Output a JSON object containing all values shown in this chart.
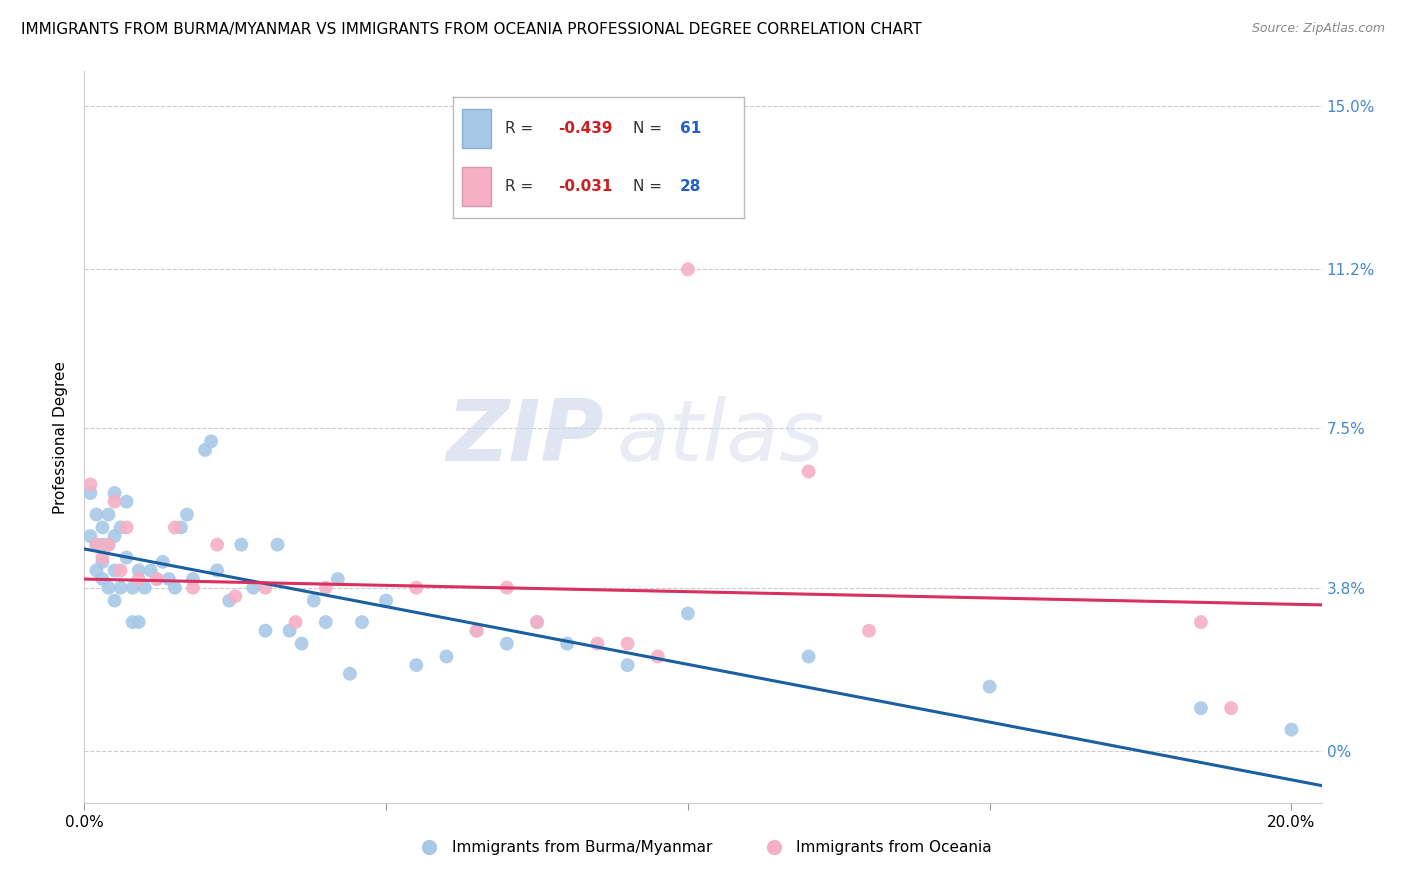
{
  "title": "IMMIGRANTS FROM BURMA/MYANMAR VS IMMIGRANTS FROM OCEANIA PROFESSIONAL DEGREE CORRELATION CHART",
  "source": "Source: ZipAtlas.com",
  "ylabel": "Professional Degree",
  "xlim": [
    0.0,
    0.205
  ],
  "ylim": [
    -0.012,
    0.158
  ],
  "ytick_vals": [
    0.0,
    0.038,
    0.075,
    0.112,
    0.15
  ],
  "ytick_labels": [
    "0%",
    "3.8%",
    "7.5%",
    "11.2%",
    "15.0%"
  ],
  "xtick_vals": [
    0.0,
    0.05,
    0.1,
    0.15,
    0.2
  ],
  "xtick_labels": [
    "0.0%",
    "",
    "",
    "",
    "20.0%"
  ],
  "legend_r1": "-0.439",
  "legend_n1": "61",
  "legend_r2": "-0.031",
  "legend_n2": "28",
  "color_blue": "#a8c8e8",
  "color_pink": "#f5b0c5",
  "color_line_blue": "#1a5fa0",
  "color_line_pink": "#d83060",
  "color_r_text": "#cc2020",
  "color_n_text": "#2060cc",
  "watermark_zip": "ZIP",
  "watermark_atlas": "atlas",
  "blue_x": [
    0.001,
    0.001,
    0.002,
    0.002,
    0.002,
    0.003,
    0.003,
    0.003,
    0.003,
    0.004,
    0.004,
    0.004,
    0.005,
    0.005,
    0.005,
    0.005,
    0.006,
    0.006,
    0.007,
    0.007,
    0.008,
    0.008,
    0.009,
    0.009,
    0.01,
    0.011,
    0.012,
    0.013,
    0.014,
    0.015,
    0.016,
    0.017,
    0.018,
    0.02,
    0.021,
    0.022,
    0.024,
    0.026,
    0.028,
    0.03,
    0.032,
    0.034,
    0.036,
    0.038,
    0.04,
    0.042,
    0.044,
    0.046,
    0.05,
    0.055,
    0.06,
    0.065,
    0.07,
    0.075,
    0.08,
    0.09,
    0.1,
    0.12,
    0.15,
    0.185,
    0.2
  ],
  "blue_y": [
    0.06,
    0.05,
    0.055,
    0.048,
    0.042,
    0.052,
    0.048,
    0.044,
    0.04,
    0.055,
    0.048,
    0.038,
    0.06,
    0.05,
    0.042,
    0.035,
    0.052,
    0.038,
    0.058,
    0.045,
    0.038,
    0.03,
    0.042,
    0.03,
    0.038,
    0.042,
    0.04,
    0.044,
    0.04,
    0.038,
    0.052,
    0.055,
    0.04,
    0.07,
    0.072,
    0.042,
    0.035,
    0.048,
    0.038,
    0.028,
    0.048,
    0.028,
    0.025,
    0.035,
    0.03,
    0.04,
    0.018,
    0.03,
    0.035,
    0.02,
    0.022,
    0.028,
    0.025,
    0.03,
    0.025,
    0.02,
    0.032,
    0.022,
    0.015,
    0.01,
    0.005
  ],
  "pink_x": [
    0.001,
    0.002,
    0.003,
    0.004,
    0.005,
    0.006,
    0.007,
    0.009,
    0.012,
    0.015,
    0.018,
    0.022,
    0.025,
    0.03,
    0.035,
    0.04,
    0.055,
    0.065,
    0.07,
    0.075,
    0.085,
    0.09,
    0.095,
    0.1,
    0.12,
    0.13,
    0.185,
    0.19
  ],
  "pink_y": [
    0.062,
    0.048,
    0.045,
    0.048,
    0.058,
    0.042,
    0.052,
    0.04,
    0.04,
    0.052,
    0.038,
    0.048,
    0.036,
    0.038,
    0.03,
    0.038,
    0.038,
    0.028,
    0.038,
    0.03,
    0.025,
    0.025,
    0.022,
    0.112,
    0.065,
    0.028,
    0.03,
    0.01
  ]
}
